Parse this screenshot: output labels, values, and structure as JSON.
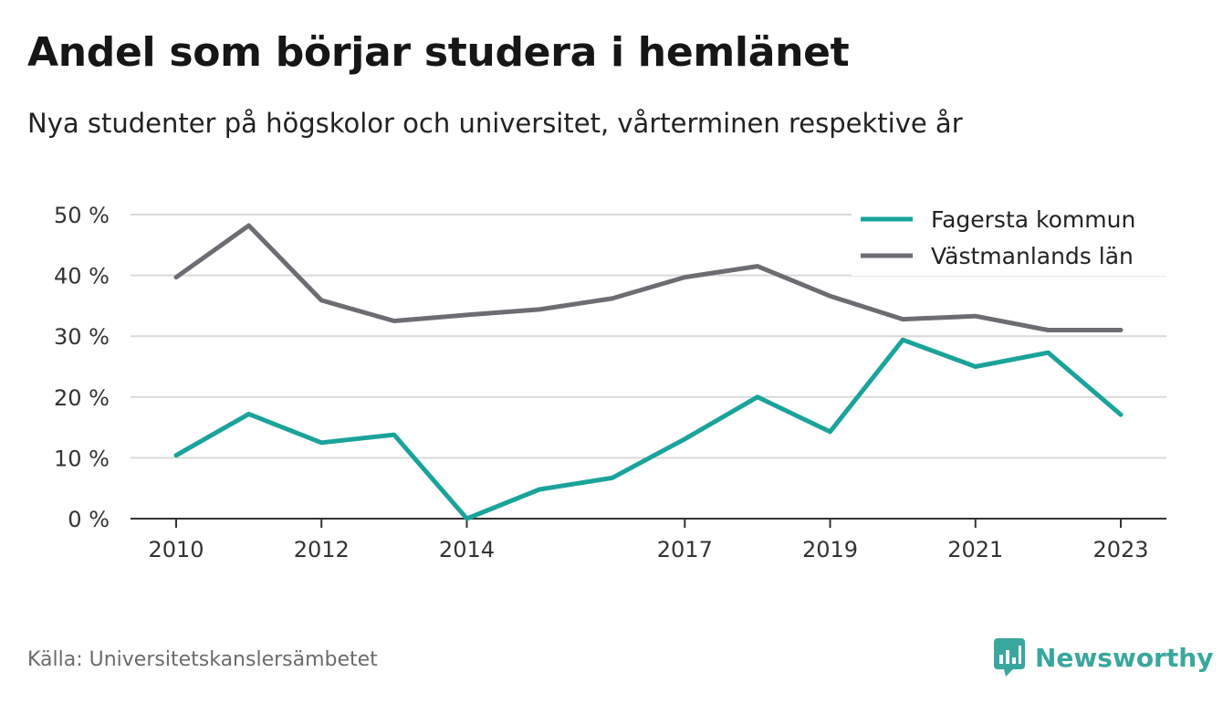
{
  "header": {
    "title": "Andel som börjar studera i hemlänet",
    "subtitle": "Nya studenter på högskolor och universitet, vårterminen respektive år"
  },
  "footer": {
    "source": "Källa: Universitetskanslersämbetet",
    "brand": "Newsworthy"
  },
  "colors": {
    "fagersta": "#1aa39a",
    "vastmanland": "#6d6c73",
    "grid": "#d9d9d9",
    "axis": "#333333",
    "brand": "#3aa79e"
  },
  "icons": {
    "brand_logo": "newsworthy-logo-icon"
  },
  "chart_data": {
    "type": "line",
    "x": [
      2010,
      2011,
      2012,
      2013,
      2014,
      2015,
      2016,
      2017,
      2018,
      2019,
      2020,
      2021,
      2022,
      2023
    ],
    "x_ticks": [
      2010,
      2012,
      2014,
      2017,
      2019,
      2021,
      2023
    ],
    "x_tick_labels": [
      "2010",
      "2012",
      "2014",
      "2017",
      "2019",
      "2021",
      "2023"
    ],
    "y_ticks": [
      0,
      10,
      20,
      30,
      40,
      50
    ],
    "y_tick_labels": [
      "0 %",
      "10 %",
      "20 %",
      "30 %",
      "40 %",
      "50 %"
    ],
    "ylim": [
      0,
      50
    ],
    "xlim": [
      2010,
      2023
    ],
    "grid": true,
    "legend_position": "top-right",
    "series": [
      {
        "name": "Fagersta kommun",
        "color": "#1aa39a",
        "values": [
          10.4,
          17.2,
          12.5,
          13.8,
          0.0,
          4.8,
          6.7,
          13.1,
          20.0,
          14.3,
          29.4,
          25.0,
          27.3,
          17.1
        ]
      },
      {
        "name": "Västmanlands län",
        "color": "#6d6c73",
        "values": [
          39.7,
          48.2,
          35.9,
          32.5,
          33.5,
          34.4,
          36.2,
          39.7,
          41.5,
          36.6,
          32.8,
          33.3,
          31.0,
          31.0
        ]
      }
    ]
  }
}
